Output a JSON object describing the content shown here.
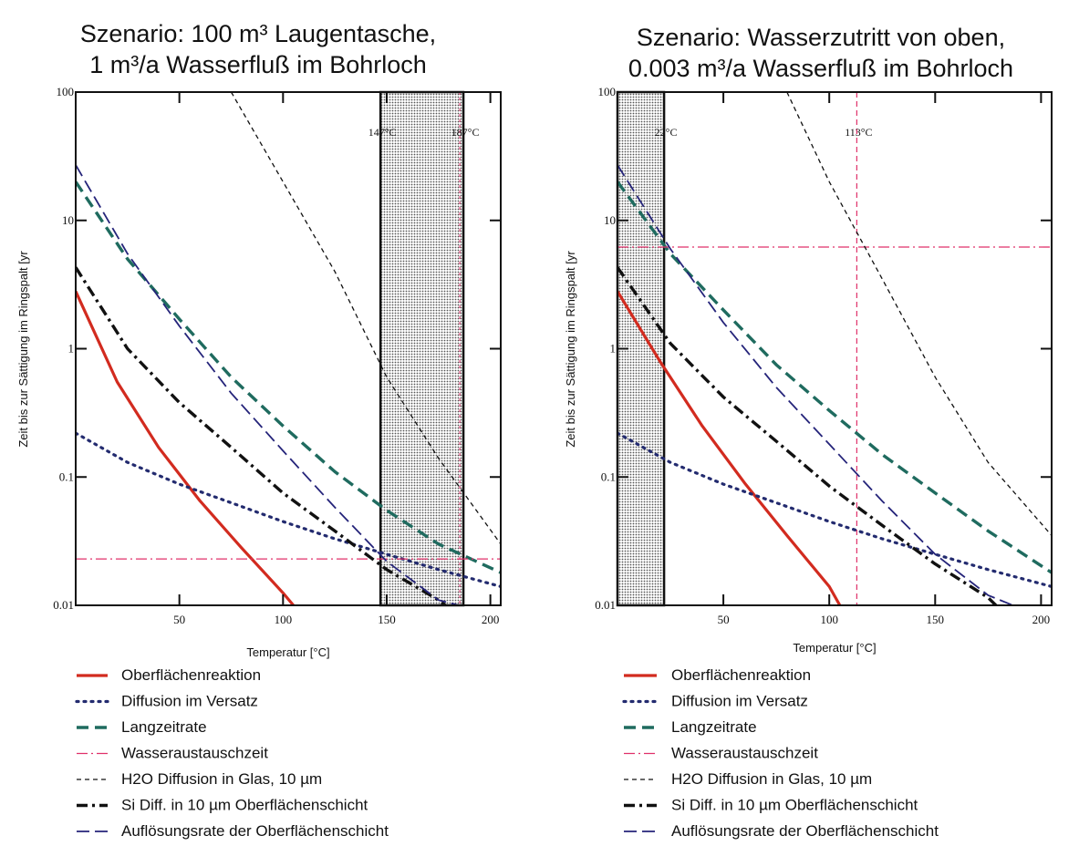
{
  "chart_data": [
    {
      "type": "line",
      "title_lines": [
        "Szenario: 100 m³ Laugentasche,",
        "1 m³/a Wasserfluß im Bohrloch"
      ],
      "xlabel": "Temperatur [°C]",
      "ylabel": "Zeit bis zur Sättigung  im Ringspalt [yr",
      "xlim": [
        0,
        205
      ],
      "ylim": [
        0.01,
        100
      ],
      "yscale": "log",
      "xticks": [
        "50",
        "100",
        "150",
        "200"
      ],
      "yticks": [
        "0.01",
        "0.1",
        "1",
        "10",
        "100"
      ],
      "shaded_band": {
        "x0": 147,
        "x1": 187
      },
      "annotations": [
        {
          "text": "147°C",
          "x": 147
        },
        {
          "text": "187°C",
          "x": 187
        }
      ],
      "series": [
        {
          "name": "Oberflächenreaktion",
          "x": [
            0,
            20,
            40,
            60,
            80,
            100,
            105
          ],
          "y": [
            2.8,
            0.55,
            0.17,
            0.065,
            0.028,
            0.0125,
            0.01
          ]
        },
        {
          "name": "Diffusion im Versatz",
          "x": [
            0,
            25,
            50,
            75,
            100,
            125,
            150,
            175,
            205
          ],
          "y": [
            0.22,
            0.13,
            0.088,
            0.063,
            0.045,
            0.033,
            0.025,
            0.019,
            0.014
          ]
        },
        {
          "name": "Langzeitrate",
          "x": [
            0,
            25,
            50,
            75,
            100,
            125,
            150,
            175,
            205
          ],
          "y": [
            20,
            5,
            1.7,
            0.6,
            0.25,
            0.11,
            0.055,
            0.03,
            0.018
          ]
        },
        {
          "name": "Wasseraustauschzeit",
          "x": [
            0,
            205
          ],
          "y": [
            0.023,
            0.023
          ]
        },
        {
          "name": "H2O Diffusion in Glas, 10 µm",
          "x": [
            75,
            100,
            125,
            150,
            175,
            205
          ],
          "y": [
            100,
            20,
            4,
            0.6,
            0.14,
            0.03
          ]
        },
        {
          "name": "Si Diff. in 10 µm Oberflächenschicht",
          "x": [
            0,
            25,
            50,
            75,
            100,
            125,
            150,
            175,
            180
          ],
          "y": [
            4.3,
            1.0,
            0.38,
            0.17,
            0.075,
            0.038,
            0.019,
            0.011,
            0.0095
          ]
        },
        {
          "name": "Auflösungsrate der Oberflächenschicht",
          "x": [
            0,
            25,
            50,
            75,
            100,
            125,
            150,
            175,
            190
          ],
          "y": [
            27,
            5.5,
            1.5,
            0.45,
            0.16,
            0.058,
            0.022,
            0.011,
            0.0095
          ]
        }
      ]
    },
    {
      "type": "line",
      "title_lines": [
        "Szenario: Wasserzutritt von oben,",
        "0.003 m³/a Wasserfluß im Bohrloch"
      ],
      "xlabel": "Temperatur [°C]",
      "ylabel": "Zeit bis zur Sättigung  im Ringspalt [yr",
      "xlim": [
        0,
        205
      ],
      "ylim": [
        0.01,
        100
      ],
      "yscale": "log",
      "xticks": [
        "50",
        "100",
        "150",
        "200"
      ],
      "yticks": [
        "0.01",
        "0.1",
        "1",
        "10",
        "100"
      ],
      "shaded_band": {
        "x0": 0,
        "x1": 22
      },
      "annotations": [
        {
          "text": "22°C",
          "x": 22
        },
        {
          "text": "113°C",
          "x": 113
        }
      ],
      "vertical_line": 113,
      "series": [
        {
          "name": "Oberflächenreaktion",
          "x": [
            0,
            20,
            40,
            60,
            80,
            100,
            105
          ],
          "y": [
            2.8,
            0.8,
            0.25,
            0.09,
            0.035,
            0.014,
            0.01
          ]
        },
        {
          "name": "Diffusion im Versatz",
          "x": [
            0,
            25,
            50,
            75,
            100,
            125,
            150,
            175,
            205
          ],
          "y": [
            0.22,
            0.13,
            0.088,
            0.063,
            0.045,
            0.033,
            0.025,
            0.019,
            0.014
          ]
        },
        {
          "name": "Langzeitrate",
          "x": [
            0,
            25,
            50,
            75,
            100,
            125,
            150,
            175,
            205
          ],
          "y": [
            20,
            5.5,
            2.0,
            0.75,
            0.33,
            0.15,
            0.075,
            0.038,
            0.018
          ]
        },
        {
          "name": "Wasseraustauschzeit",
          "x": [
            0,
            205
          ],
          "y": [
            6.2,
            6.2
          ]
        },
        {
          "name": "H2O Diffusion in Glas, 10 µm",
          "x": [
            80,
            100,
            125,
            150,
            175,
            205
          ],
          "y": [
            100,
            20,
            3.5,
            0.6,
            0.13,
            0.035
          ]
        },
        {
          "name": "Si Diff. in 10 µm Oberflächenschicht",
          "x": [
            0,
            25,
            50,
            75,
            100,
            125,
            150,
            175,
            180
          ],
          "y": [
            4.3,
            1.1,
            0.42,
            0.19,
            0.085,
            0.042,
            0.021,
            0.0115,
            0.0095
          ]
        },
        {
          "name": "Auflösungsrate der Oberflächenschicht",
          "x": [
            0,
            25,
            50,
            75,
            100,
            125,
            150,
            175,
            190
          ],
          "y": [
            27,
            6,
            1.6,
            0.5,
            0.18,
            0.065,
            0.025,
            0.012,
            0.0095
          ]
        }
      ]
    }
  ],
  "legend": [
    {
      "label": "Oberflächenreaktion",
      "color": "#d22b1f",
      "style": "solid"
    },
    {
      "label": "Diffusion im Versatz",
      "color": "#232b6f",
      "style": "dotted"
    },
    {
      "label": "Langzeitrate",
      "color": "#1f6b5f",
      "style": "dashed"
    },
    {
      "label": "Wasseraustauschzeit",
      "color": "#e0306a",
      "style": "dashdot-thin"
    },
    {
      "label": "H2O Diffusion in Glas, 10 µm",
      "color": "#111111",
      "style": "dashed-thin"
    },
    {
      "label": "Si Diff. in 10 µm Oberflächenschicht",
      "color": "#111111",
      "style": "dashdot"
    },
    {
      "label": "Auflösungsrate der Oberflächenschicht",
      "color": "#25247a",
      "style": "longdash"
    }
  ]
}
